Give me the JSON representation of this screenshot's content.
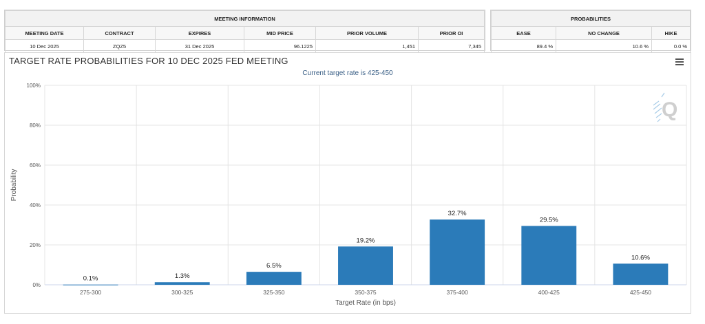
{
  "meeting_info": {
    "group_header": "MEETING INFORMATION",
    "headers": [
      "MEETING DATE",
      "CONTRACT",
      "EXPIRES",
      "MID PRICE",
      "PRIOR VOLUME",
      "PRIOR OI"
    ],
    "values": [
      "10 Dec 2025",
      "ZQZ5",
      "31 Dec 2025",
      "96.1225",
      "1,451",
      "7,345"
    ]
  },
  "probabilities": {
    "group_header": "PROBABILITIES",
    "headers": [
      "EASE",
      "NO CHANGE",
      "HIKE"
    ],
    "values": [
      "89.4 %",
      "10.6 %",
      "0.0 %"
    ]
  },
  "chart": {
    "menu_icon": "hamburger-menu-icon",
    "logo_letter": "Q",
    "bar_color": "#2b7bb9"
  },
  "chart_data": {
    "type": "bar",
    "title": "TARGET RATE PROBABILITIES FOR 10 DEC 2025 FED MEETING",
    "subtitle": "Current target rate is 425-450",
    "xlabel": "Target Rate (in bps)",
    "ylabel": "Probability",
    "ylim": [
      0,
      100
    ],
    "yticks": [
      "0%",
      "20%",
      "40%",
      "60%",
      "80%",
      "100%"
    ],
    "categories": [
      "275-300",
      "300-325",
      "325-350",
      "350-375",
      "375-400",
      "400-425",
      "425-450"
    ],
    "values": [
      0.1,
      1.3,
      6.5,
      19.2,
      32.7,
      29.5,
      10.6
    ],
    "data_labels": [
      "0.1%",
      "1.3%",
      "6.5%",
      "19.2%",
      "32.7%",
      "29.5%",
      "10.6%"
    ],
    "grid": true
  }
}
